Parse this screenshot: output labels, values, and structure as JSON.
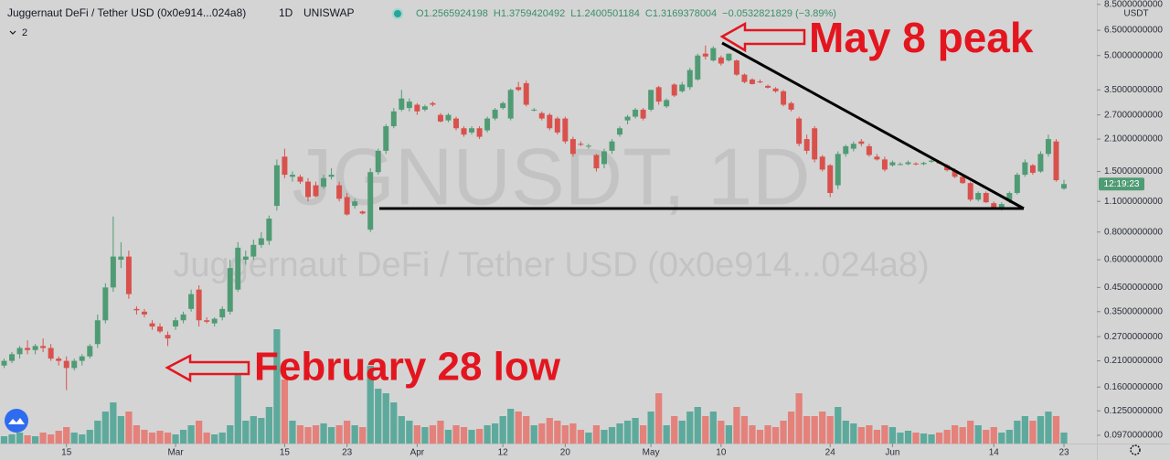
{
  "chart_data": {
    "type": "candlestick",
    "title": "Juggernaut DeFi / Tether USD (0x0e914...024a8)",
    "interval": "1D",
    "exchange": "UNISWAP",
    "indicator_count": "2",
    "legend": [
      "O1.2565924198",
      "H1.3759420492",
      "L1.2400501184",
      "C1.3169378004",
      "−0.0532821829 (−3.89%)"
    ],
    "watermark": "JGNUSDT, 1D",
    "currency": "USDT",
    "countdown": "12:19:23",
    "annotations": [
      "May 8 peak",
      "February 28 low"
    ],
    "log_scale": true,
    "up_color": "#4f9b74",
    "down_color": "#d9514c",
    "volume_up_color": "#5daa9c",
    "volume_down_color": "#e4817b",
    "ylim": [
      0.089,
      8.9
    ],
    "yticks": [
      {
        "value": 8.5,
        "label": "8.5000000000"
      },
      {
        "value": 6.5,
        "label": "6.5000000000"
      },
      {
        "value": 5,
        "label": "5.0000000000"
      },
      {
        "value": 3.5,
        "label": "3.5000000000"
      },
      {
        "value": 2.7,
        "label": "2.7000000000"
      },
      {
        "value": 2.1,
        "label": "2.1000000000"
      },
      {
        "value": 1.5,
        "label": "1.5000000000"
      },
      {
        "value": 1.1,
        "label": "1.1000000000"
      },
      {
        "value": 0.8,
        "label": "0.8000000000"
      },
      {
        "value": 0.6,
        "label": "0.6000000000"
      },
      {
        "value": 0.45,
        "label": "0.4500000000"
      },
      {
        "value": 0.35,
        "label": "0.3500000000"
      },
      {
        "value": 0.27,
        "label": "0.2700000000"
      },
      {
        "value": 0.21,
        "label": "0.2100000000"
      },
      {
        "value": 0.16,
        "label": "0.1600000000"
      },
      {
        "value": 0.125,
        "label": "0.1250000000"
      },
      {
        "value": 0.097,
        "label": "0.0970000000"
      }
    ],
    "xticks": [
      {
        "value": "Feb 15",
        "label": "15"
      },
      {
        "value": "Mar 1",
        "label": "Mar"
      },
      {
        "value": "Mar 15",
        "label": "15"
      },
      {
        "value": "Mar 23",
        "label": "23"
      },
      {
        "value": "Apr 1",
        "label": "Apr"
      },
      {
        "value": "Apr 12",
        "label": "12"
      },
      {
        "value": "Apr 20",
        "label": "20"
      },
      {
        "value": "May 1",
        "label": "May"
      },
      {
        "value": "May 10",
        "label": "10"
      },
      {
        "value": "May 24",
        "label": "24"
      },
      {
        "value": "Jun 1",
        "label": "Jun"
      },
      {
        "value": "Jun 14",
        "label": "14"
      },
      {
        "value": "Jun 23",
        "label": "23"
      }
    ],
    "x": [
      "Feb 7",
      "Feb 8",
      "Feb 9",
      "Feb 10",
      "Feb 11",
      "Feb 12",
      "Feb 13",
      "Feb 14",
      "Feb 15",
      "Feb 16",
      "Feb 17",
      "Feb 18",
      "Feb 19",
      "Feb 20",
      "Feb 21",
      "Feb 22",
      "Feb 23",
      "Feb 24",
      "Feb 25",
      "Feb 26",
      "Feb 27",
      "Feb 28",
      "Mar 1",
      "Mar 2",
      "Mar 3",
      "Mar 4",
      "Mar 5",
      "Mar 6",
      "Mar 7",
      "Mar 8",
      "Mar 9",
      "Mar 10",
      "Mar 11",
      "Mar 12",
      "Mar 13",
      "Mar 14",
      "Mar 15",
      "Mar 16",
      "Mar 17",
      "Mar 18",
      "Mar 19",
      "Mar 20",
      "Mar 21",
      "Mar 22",
      "Mar 23",
      "Mar 24",
      "Mar 25",
      "Mar 26",
      "Mar 27",
      "Mar 28",
      "Mar 29",
      "Mar 30",
      "Mar 31",
      "Apr 1",
      "Apr 2",
      "Apr 3",
      "Apr 4",
      "Apr 5",
      "Apr 6",
      "Apr 7",
      "Apr 8",
      "Apr 9",
      "Apr 10",
      "Apr 11",
      "Apr 12",
      "Apr 13",
      "Apr 14",
      "Apr 15",
      "Apr 16",
      "Apr 17",
      "Apr 18",
      "Apr 19",
      "Apr 20",
      "Apr 21",
      "Apr 22",
      "Apr 23",
      "Apr 24",
      "Apr 25",
      "Apr 26",
      "Apr 27",
      "Apr 28",
      "Apr 29",
      "Apr 30",
      "May 1",
      "May 2",
      "May 3",
      "May 4",
      "May 5",
      "May 6",
      "May 7",
      "May 8",
      "May 9",
      "May 10",
      "May 11",
      "May 12",
      "May 13",
      "May 14",
      "May 15",
      "May 16",
      "May 17",
      "May 18",
      "May 19",
      "May 20",
      "May 21",
      "May 22",
      "May 23",
      "May 24",
      "May 25",
      "May 26",
      "May 27",
      "May 28",
      "May 29",
      "May 30",
      "May 31",
      "Jun 1",
      "Jun 2",
      "Jun 3",
      "Jun 4",
      "Jun 5",
      "Jun 6",
      "Jun 7",
      "Jun 8",
      "Jun 9",
      "Jun 10",
      "Jun 11",
      "Jun 12",
      "Jun 13",
      "Jun 14",
      "Jun 15",
      "Jun 16",
      "Jun 17",
      "Jun 18",
      "Jun 19",
      "Jun 20",
      "Jun 21",
      "Jun 22",
      "Jun 23"
    ],
    "open": [
      0.2,
      0.21,
      0.225,
      0.24,
      0.235,
      0.245,
      0.24,
      0.215,
      0.21,
      0.195,
      0.21,
      0.22,
      0.25,
      0.32,
      0.45,
      0.6,
      0.62,
      0.36,
      0.35,
      0.31,
      0.3,
      0.275,
      0.3,
      0.32,
      0.36,
      0.44,
      0.32,
      0.31,
      0.33,
      0.35,
      0.44,
      0.6,
      0.62,
      0.7,
      0.73,
      1.05,
      1.75,
      1.42,
      1.42,
      1.35,
      1.3,
      1.28,
      1.42,
      1.3,
      1.15,
      1.05,
      0.99,
      0.82,
      1.49,
      1.86,
      2.4,
      2.85,
      2.9,
      3.0,
      2.85,
      3.05,
      2.7,
      2.55,
      2.6,
      2.35,
      2.25,
      2.35,
      2.3,
      2.6,
      2.9,
      2.6,
      3.6,
      3.75,
      2.85,
      2.75,
      2.7,
      2.6,
      2.6,
      2.1,
      2.0,
      1.95,
      1.78,
      1.62,
      1.86,
      2.2,
      2.55,
      2.65,
      2.85,
      2.85,
      3.6,
      2.95,
      3.7,
      3.45,
      3.6,
      3.9,
      5.1,
      4.75,
      4.9,
      4.75,
      4.75,
      4.1,
      3.9,
      3.82,
      3.65,
      3.55,
      3.45,
      3.05,
      2.6,
      2.1,
      2.35,
      1.75,
      1.6,
      1.3,
      1.8,
      1.9,
      2.05,
      1.95,
      1.75,
      1.7,
      1.6,
      1.62,
      1.62,
      1.63,
      1.62,
      1.66,
      1.66,
      1.6,
      1.52,
      1.42,
      1.33,
      1.12,
      1.2,
      1.08,
      1.03,
      1.1,
      1.2,
      1.45,
      1.6,
      1.5,
      1.8,
      2.05,
      1.2565924198
    ],
    "high": [
      0.215,
      0.23,
      0.245,
      0.26,
      0.25,
      0.265,
      0.25,
      0.22,
      0.22,
      0.215,
      0.225,
      0.25,
      0.34,
      0.47,
      0.94,
      0.72,
      0.66,
      0.37,
      0.36,
      0.32,
      0.31,
      0.285,
      0.33,
      0.35,
      0.44,
      0.46,
      0.33,
      0.33,
      0.37,
      0.6,
      0.72,
      0.66,
      0.74,
      0.8,
      0.95,
      1.7,
      1.9,
      1.5,
      1.45,
      1.4,
      1.35,
      1.45,
      1.55,
      1.35,
      1.2,
      1.13,
      1.0,
      1.55,
      1.9,
      2.45,
      2.9,
      3.5,
      3.2,
      3.05,
      3.0,
      3.1,
      2.75,
      2.75,
      2.65,
      2.4,
      2.4,
      2.4,
      2.65,
      2.9,
      3.1,
      3.55,
      3.8,
      3.85,
      2.9,
      2.8,
      2.75,
      2.65,
      2.65,
      2.15,
      2.05,
      2.0,
      1.8,
      1.9,
      2.1,
      2.4,
      2.7,
      2.9,
      2.9,
      3.5,
      3.65,
      3.2,
      3.75,
      3.8,
      4.4,
      5.1,
      5.55,
      5.5,
      5.0,
      5.1,
      4.8,
      4.15,
      3.95,
      3.9,
      3.7,
      3.6,
      3.5,
      3.1,
      2.65,
      2.2,
      2.4,
      1.78,
      1.62,
      1.85,
      1.98,
      2.05,
      2.1,
      2.0,
      1.8,
      1.75,
      1.68,
      1.65,
      1.68,
      1.65,
      1.66,
      1.7,
      1.68,
      1.62,
      1.55,
      1.45,
      1.35,
      1.22,
      1.22,
      1.1,
      1.09,
      1.22,
      1.48,
      1.7,
      1.62,
      1.85,
      2.2,
      2.1,
      1.3759420492
    ],
    "low": [
      0.195,
      0.205,
      0.215,
      0.225,
      0.225,
      0.23,
      0.21,
      0.2,
      0.155,
      0.19,
      0.2,
      0.215,
      0.24,
      0.31,
      0.43,
      0.55,
      0.4,
      0.34,
      0.33,
      0.29,
      0.28,
      0.245,
      0.29,
      0.31,
      0.35,
      0.3,
      0.31,
      0.3,
      0.32,
      0.34,
      0.43,
      0.57,
      0.6,
      0.68,
      0.7,
      1.0,
      1.4,
      1.35,
      1.32,
      1.1,
      1.15,
      1.25,
      1.38,
      1.1,
      0.95,
      1.02,
      0.96,
      0.8,
      1.45,
      1.8,
      2.35,
      2.8,
      2.8,
      2.7,
      2.8,
      2.95,
      2.5,
      2.5,
      2.3,
      2.15,
      2.2,
      2.1,
      2.25,
      2.55,
      2.85,
      2.55,
      3.45,
      2.95,
      2.8,
      2.55,
      2.3,
      2.2,
      2.0,
      1.75,
      1.95,
      1.9,
      1.5,
      1.55,
      1.8,
      2.15,
      2.45,
      2.6,
      2.55,
      2.8,
      3.0,
      2.9,
      3.25,
      3.4,
      3.5,
      3.85,
      4.8,
      4.7,
      4.5,
      4.7,
      4.05,
      3.75,
      3.7,
      3.75,
      3.55,
      3.4,
      2.95,
      2.8,
      1.95,
      1.8,
      1.65,
      1.5,
      1.15,
      1.25,
      1.75,
      1.85,
      1.95,
      1.75,
      1.68,
      1.5,
      1.58,
      1.6,
      1.6,
      1.6,
      1.6,
      1.64,
      1.62,
      1.5,
      1.4,
      1.32,
      1.1,
      1.1,
      1.08,
      1.02,
      1.0,
      1.08,
      1.18,
      1.42,
      1.45,
      1.48,
      1.75,
      1.35,
      1.2400501184
    ],
    "close": [
      0.21,
      0.225,
      0.24,
      0.235,
      0.245,
      0.24,
      0.215,
      0.21,
      0.195,
      0.21,
      0.22,
      0.245,
      0.32,
      0.45,
      0.62,
      0.62,
      0.42,
      0.355,
      0.34,
      0.3,
      0.285,
      0.265,
      0.32,
      0.34,
      0.42,
      0.32,
      0.315,
      0.325,
      0.36,
      0.55,
      0.68,
      0.62,
      0.7,
      0.75,
      0.92,
      1.6,
      1.45,
      1.45,
      1.35,
      1.15,
      1.16,
      1.4,
      1.45,
      1.13,
      0.96,
      1.1,
      0.97,
      1.49,
      1.86,
      2.4,
      2.8,
      3.2,
      3.1,
      2.8,
      2.95,
      3.0,
      2.52,
      2.7,
      2.35,
      2.2,
      2.35,
      2.15,
      2.6,
      2.85,
      3.05,
      3.5,
      3.5,
      3.0,
      2.85,
      2.6,
      2.35,
      2.25,
      2.05,
      1.8,
      1.98,
      1.96,
      1.55,
      1.85,
      2.05,
      2.35,
      2.65,
      2.85,
      2.6,
      3.5,
      3.1,
      3.15,
      3.3,
      3.7,
      4.3,
      5.0,
      4.95,
      5.4,
      4.6,
      5.1,
      4.1,
      3.8,
      3.72,
      3.8,
      3.58,
      3.45,
      3.0,
      2.85,
      2.0,
      1.86,
      1.7,
      1.53,
      1.2,
      1.8,
      1.95,
      2.0,
      2.0,
      1.78,
      1.7,
      1.53,
      1.65,
      1.62,
      1.65,
      1.62,
      1.64,
      1.68,
      1.63,
      1.52,
      1.42,
      1.33,
      1.12,
      1.2,
      1.09,
      1.03,
      1.07,
      1.2,
      1.45,
      1.65,
      1.48,
      1.8,
      2.1,
      1.37,
      1.3169378004
    ],
    "volume": [
      8,
      10,
      12,
      9,
      8,
      12,
      10,
      14,
      18,
      12,
      10,
      15,
      25,
      35,
      45,
      30,
      35,
      20,
      15,
      12,
      14,
      12,
      10,
      15,
      20,
      25,
      12,
      10,
      12,
      20,
      80,
      25,
      30,
      28,
      40,
      125,
      70,
      25,
      20,
      18,
      20,
      22,
      18,
      20,
      25,
      20,
      18,
      85,
      60,
      55,
      45,
      30,
      25,
      20,
      18,
      20,
      25,
      15,
      20,
      18,
      15,
      16,
      20,
      22,
      30,
      38,
      35,
      30,
      20,
      22,
      28,
      25,
      20,
      22,
      15,
      12,
      20,
      15,
      18,
      22,
      25,
      28,
      20,
      35,
      55,
      20,
      30,
      25,
      35,
      40,
      30,
      35,
      25,
      20,
      40,
      30,
      20,
      15,
      20,
      18,
      25,
      35,
      55,
      30,
      30,
      35,
      30,
      40,
      25,
      22,
      18,
      20,
      15,
      20,
      18,
      12,
      14,
      12,
      11,
      10,
      12,
      15,
      20,
      18,
      25,
      20,
      15,
      18,
      12,
      15,
      25,
      30,
      25,
      30,
      35,
      30,
      12
    ]
  }
}
